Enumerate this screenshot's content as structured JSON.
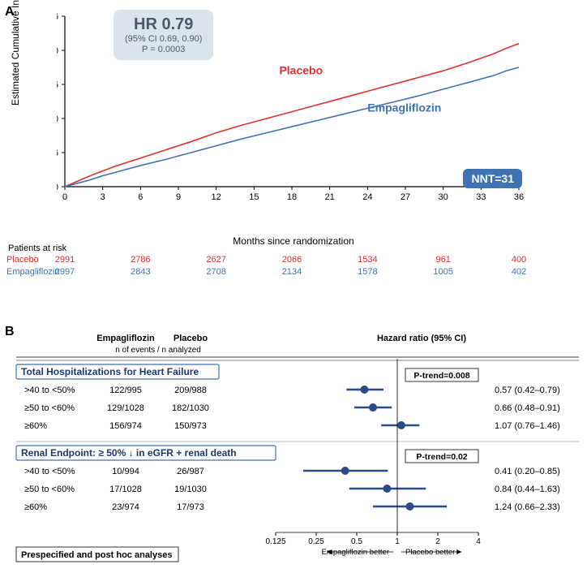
{
  "panelA": {
    "label": "A",
    "ylabel": "Estimated Cumulative Incidence (%)",
    "xlabel": "Months since randomization",
    "ylim": [
      0,
      25
    ],
    "ytick_step": 5,
    "xlim": [
      0,
      36
    ],
    "xtick_step": 3,
    "hr_box": {
      "main": "HR 0.79",
      "ci": "(95% CI 0.69, 0.90)",
      "p": "P = 0.0003"
    },
    "nnt": "NNT=31",
    "series": [
      {
        "name": "Placebo",
        "color": "#e03030",
        "label_pos": {
          "x": 17,
          "y": 16.5
        },
        "points": [
          [
            0,
            0
          ],
          [
            1,
            0.8
          ],
          [
            2,
            1.6
          ],
          [
            3,
            2.3
          ],
          [
            4,
            3.0
          ],
          [
            5,
            3.6
          ],
          [
            6,
            4.2
          ],
          [
            8,
            5.4
          ],
          [
            10,
            6.6
          ],
          [
            12,
            7.9
          ],
          [
            14,
            9.0
          ],
          [
            16,
            10.0
          ],
          [
            18,
            11.0
          ],
          [
            20,
            12.0
          ],
          [
            22,
            13.0
          ],
          [
            24,
            14.0
          ],
          [
            26,
            15.0
          ],
          [
            28,
            16.0
          ],
          [
            30,
            17.0
          ],
          [
            32,
            18.2
          ],
          [
            34,
            19.5
          ],
          [
            35,
            20.3
          ],
          [
            36,
            21.0
          ]
        ]
      },
      {
        "name": "Empagliflozin",
        "color": "#3f73b4",
        "label_pos": {
          "x": 24,
          "y": 11
        },
        "points": [
          [
            0,
            0
          ],
          [
            1,
            0.5
          ],
          [
            2,
            1.0
          ],
          [
            3,
            1.6
          ],
          [
            4,
            2.1
          ],
          [
            5,
            2.6
          ],
          [
            6,
            3.1
          ],
          [
            8,
            4.0
          ],
          [
            10,
            5.0
          ],
          [
            12,
            6.0
          ],
          [
            14,
            7.0
          ],
          [
            16,
            7.9
          ],
          [
            18,
            8.8
          ],
          [
            20,
            9.7
          ],
          [
            22,
            10.6
          ],
          [
            24,
            11.5
          ],
          [
            26,
            12.4
          ],
          [
            28,
            13.3
          ],
          [
            30,
            14.3
          ],
          [
            32,
            15.3
          ],
          [
            34,
            16.3
          ],
          [
            35,
            17.0
          ],
          [
            36,
            17.5
          ]
        ]
      }
    ],
    "line_width": 1.6,
    "risk_title": "Patients at risk",
    "risk_months": [
      0,
      6,
      12,
      18,
      24,
      30,
      36
    ],
    "risk_rows": [
      {
        "name": "Placebo",
        "color": "#e03030",
        "values": [
          "2991",
          "2786",
          "2627",
          "2066",
          "1534",
          "961",
          "400"
        ]
      },
      {
        "name": "Empagliflozin",
        "color": "#3f73b4",
        "values": [
          "2997",
          "2843",
          "2708",
          "2134",
          "1578",
          "1005",
          "402"
        ]
      }
    ]
  },
  "panelB": {
    "label": "B",
    "col_headers": {
      "empa": "Empagliflozin",
      "plac": "Placebo",
      "sub": "n of events / n analyzed",
      "hr": "Hazard ratio (95% CI)"
    },
    "axis": {
      "ticks": [
        0.125,
        0.25,
        0.5,
        1,
        2,
        4
      ],
      "left_label": "Empagliflozin better",
      "right_label": "Placebo better"
    },
    "marker_color": "#2a4a8a",
    "sections": [
      {
        "title": "Total Hospitalizations for Heart Failure",
        "ptrend": "P-trend=0.008",
        "rows": [
          {
            "label": ">40 to <50%",
            "empa": "122/995",
            "plac": "209/988",
            "hr": 0.57,
            "lo": 0.42,
            "hi": 0.79,
            "text": "0.57 (0.42–0.79)"
          },
          {
            "label": "≥50 to <60%",
            "empa": "129/1028",
            "plac": "182/1030",
            "hr": 0.66,
            "lo": 0.48,
            "hi": 0.91,
            "text": "0.66 (0.48–0.91)"
          },
          {
            "label": "≥60%",
            "empa": "156/974",
            "plac": "150/973",
            "hr": 1.07,
            "lo": 0.76,
            "hi": 1.46,
            "text": "1.07 (0.76–1.46)"
          }
        ]
      },
      {
        "title": "Renal Endpoint: ≥ 50% ↓ in eGFR + renal death",
        "ptrend": "P-trend=0.02",
        "rows": [
          {
            "label": ">40 to <50%",
            "empa": "10/994",
            "plac": "26/987",
            "hr": 0.41,
            "lo": 0.2,
            "hi": 0.85,
            "text": "0.41 (0.20–0.85)"
          },
          {
            "label": "≥50 to <60%",
            "empa": "17/1028",
            "plac": "19/1030",
            "hr": 0.84,
            "lo": 0.44,
            "hi": 1.63,
            "text": "0.84 (0.44–1.63)"
          },
          {
            "label": "≥60%",
            "empa": "23/974",
            "plac": "17/973",
            "hr": 1.24,
            "lo": 0.66,
            "hi": 2.33,
            "text": "1.24 (0.66–2.33)"
          }
        ]
      }
    ],
    "footer": "Prespecified and post hoc analyses"
  }
}
